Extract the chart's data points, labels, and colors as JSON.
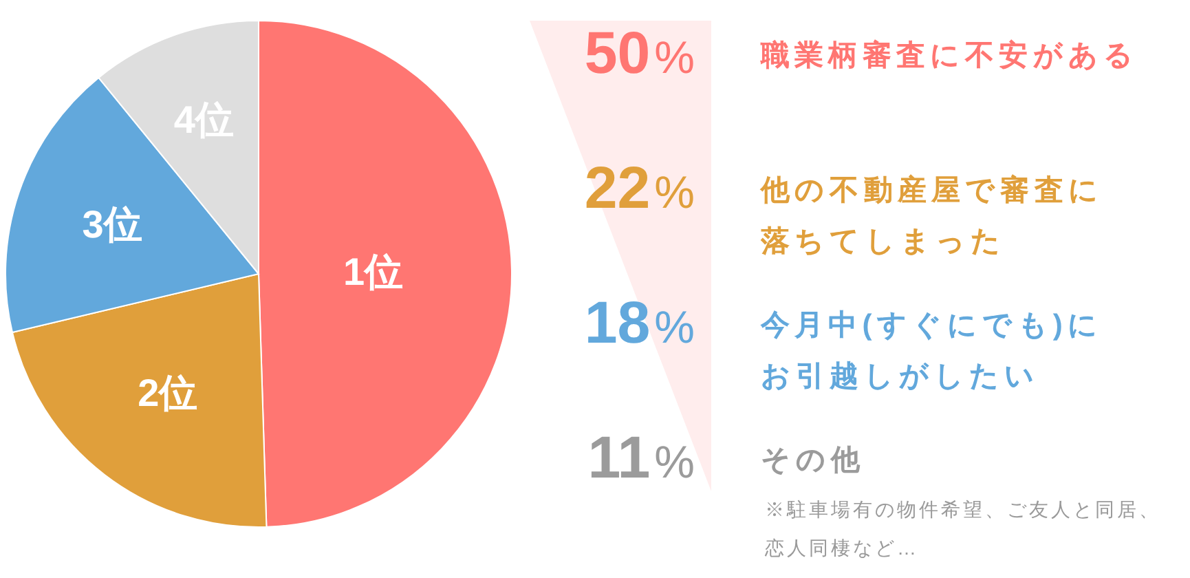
{
  "chart_data": {
    "type": "pie",
    "categories": [
      "1位",
      "2位",
      "3位",
      "4位"
    ],
    "values": [
      50,
      22,
      18,
      11
    ],
    "colors": [
      "#ff7672",
      "#e09f3b",
      "#62a8dc",
      "#dedede"
    ],
    "annotations": [
      "50%",
      "職業柄審査に不安がある",
      "22%",
      "他の不動産屋で審査に落ちてしまった",
      "18%",
      "今月中(すぐにでも)にお引越しがしたい",
      "11%",
      "その他",
      "※駐車場有の物件希望、ご友人と同居、恋人同棲など…"
    ]
  }
}
